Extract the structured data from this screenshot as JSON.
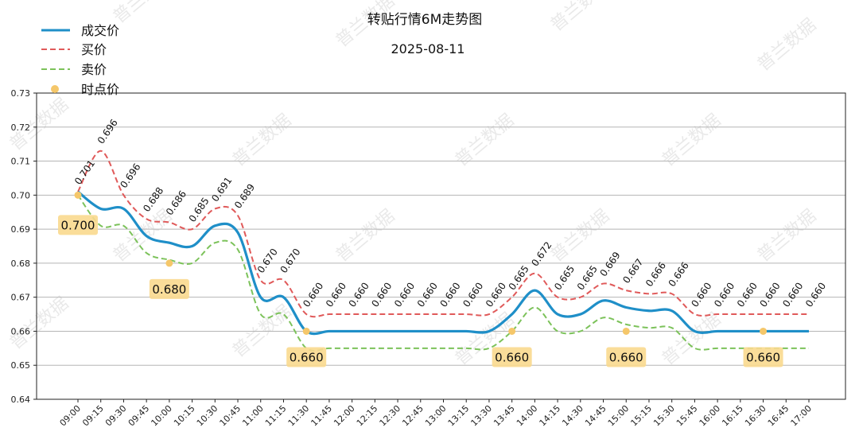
{
  "chart_data": {
    "type": "line",
    "title": "转贴行情6M走势图",
    "subtitle": "2025-08-11",
    "watermark": "普兰数据",
    "x": [
      "09:00",
      "09:15",
      "09:30",
      "09:45",
      "10:00",
      "10:15",
      "10:30",
      "10:45",
      "11:00",
      "11:15",
      "11:30",
      "11:45",
      "12:00",
      "12:15",
      "12:30",
      "12:45",
      "13:00",
      "13:15",
      "13:30",
      "13:45",
      "14:00",
      "14:15",
      "14:30",
      "14:45",
      "15:00",
      "15:15",
      "15:30",
      "15:45",
      "16:00",
      "16:15",
      "16:30",
      "16:45",
      "17:00"
    ],
    "ylim": [
      0.64,
      0.73
    ],
    "yticks": [
      "0.64",
      "0.65",
      "0.66",
      "0.67",
      "0.68",
      "0.69",
      "0.70",
      "0.71",
      "0.72",
      "0.73"
    ],
    "grid": true,
    "legend_position": "top-left",
    "series": [
      {
        "name": "成交价",
        "style": "solid",
        "color": "#1f8fc8",
        "values": [
          0.701,
          0.696,
          0.696,
          0.688,
          0.686,
          0.685,
          0.691,
          0.689,
          0.67,
          0.67,
          0.66,
          0.66,
          0.66,
          0.66,
          0.66,
          0.66,
          0.66,
          0.66,
          0.66,
          0.665,
          0.672,
          0.665,
          0.665,
          0.669,
          0.667,
          0.666,
          0.666,
          0.66,
          0.66,
          0.66,
          0.66,
          0.66,
          0.66
        ]
      },
      {
        "name": "买价",
        "style": "dashed",
        "color": "#e05a5a",
        "values": [
          0.701,
          0.713,
          0.7,
          0.693,
          0.692,
          0.69,
          0.696,
          0.694,
          0.675,
          0.675,
          0.665,
          0.665,
          0.665,
          0.665,
          0.665,
          0.665,
          0.665,
          0.665,
          0.665,
          0.67,
          0.677,
          0.67,
          0.67,
          0.674,
          0.672,
          0.671,
          0.671,
          0.665,
          0.665,
          0.665,
          0.665,
          0.665,
          0.665
        ]
      },
      {
        "name": "卖价",
        "style": "dashed",
        "color": "#7cc25a",
        "values": [
          0.7,
          0.691,
          0.691,
          0.683,
          0.681,
          0.68,
          0.686,
          0.684,
          0.665,
          0.665,
          0.655,
          0.655,
          0.655,
          0.655,
          0.655,
          0.655,
          0.655,
          0.655,
          0.655,
          0.66,
          0.667,
          0.66,
          0.66,
          0.664,
          0.662,
          0.661,
          0.661,
          0.655,
          0.655,
          0.655,
          0.655,
          0.655,
          0.655
        ]
      }
    ],
    "data_labels": [
      "0.701",
      "0.696",
      "0.696",
      "0.688",
      "0.686",
      "0.685",
      "0.691",
      "0.689",
      "0.670",
      "0.670",
      "0.660",
      "0.660",
      "0.660",
      "0.660",
      "0.660",
      "0.660",
      "0.660",
      "0.660",
      "0.660",
      "0.665",
      "0.672",
      "0.665",
      "0.665",
      "0.669",
      "0.667",
      "0.666",
      "0.666",
      "0.660",
      "0.660",
      "0.660",
      "0.660",
      "0.660",
      "0.660"
    ],
    "spot_prices": {
      "name": "时点价",
      "color": "#f5c76a",
      "points": [
        {
          "x": "09:00",
          "value": 0.7,
          "label": "0.700"
        },
        {
          "x": "10:00",
          "value": 0.68,
          "label": "0.680"
        },
        {
          "x": "11:30",
          "value": 0.66,
          "label": "0.660"
        },
        {
          "x": "13:45",
          "value": 0.66,
          "label": "0.660"
        },
        {
          "x": "15:00",
          "value": 0.66,
          "label": "0.660"
        },
        {
          "x": "16:30",
          "value": 0.66,
          "label": "0.660"
        }
      ]
    }
  }
}
